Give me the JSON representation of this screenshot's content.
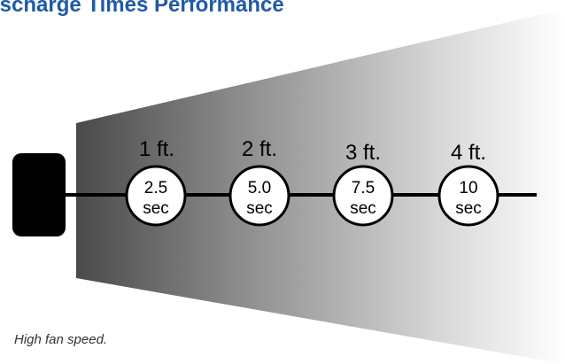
{
  "title": "ischarge Times Performance",
  "stations": [
    {
      "distance": "1 ft.",
      "time_value": "2.5",
      "time_unit": "sec"
    },
    {
      "distance": "2 ft.",
      "time_value": "5.0",
      "time_unit": "sec"
    },
    {
      "distance": "3 ft.",
      "time_value": "7.5",
      "time_unit": "sec"
    },
    {
      "distance": "4 ft.",
      "time_value": "10",
      "time_unit": "sec"
    }
  ],
  "note": "High fan speed.",
  "colors": {
    "title": "#1f5aa6",
    "beam_start": "#4a4a4a",
    "beam_end": "#ffffff",
    "device": "#000000"
  }
}
